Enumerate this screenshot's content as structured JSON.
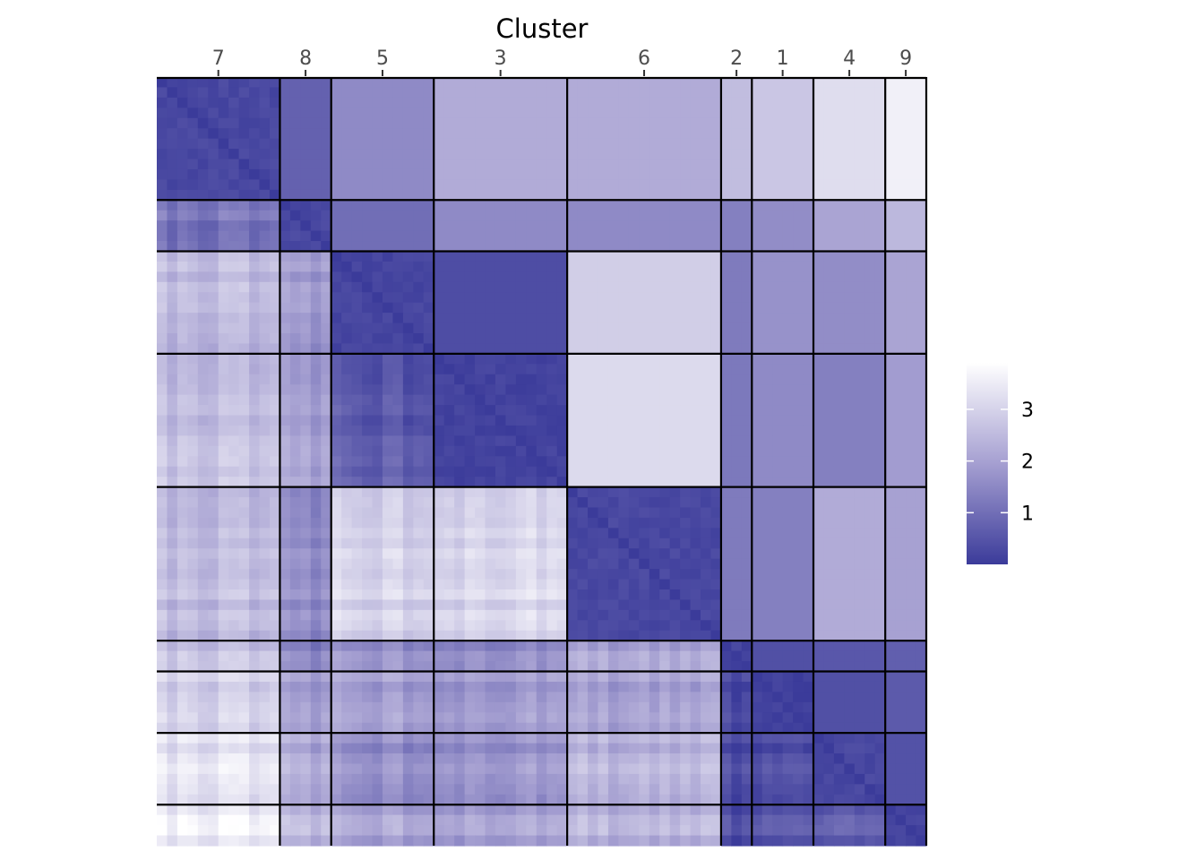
{
  "chart_data": {
    "type": "heatmap",
    "title": "",
    "xlabel": "Cluster",
    "ylabel": "",
    "clusters": [
      {
        "label": "7",
        "size": 12
      },
      {
        "label": "8",
        "size": 5
      },
      {
        "label": "5",
        "size": 10
      },
      {
        "label": "3",
        "size": 13
      },
      {
        "label": "6",
        "size": 15
      },
      {
        "label": "2",
        "size": 3
      },
      {
        "label": "1",
        "size": 6
      },
      {
        "label": "4",
        "size": 7
      },
      {
        "label": "9",
        "size": 4
      }
    ],
    "block_means": [
      [
        0.25,
        0.75,
        1.55,
        2.2,
        2.2,
        2.55,
        2.75,
        3.2,
        3.6
      ],
      [
        1.1,
        0.25,
        1.0,
        1.55,
        1.55,
        1.35,
        1.6,
        2.05,
        2.45
      ],
      [
        2.4,
        1.8,
        0.2,
        0.35,
        2.9,
        1.25,
        1.7,
        1.6,
        2.05
      ],
      [
        2.55,
        1.95,
        0.6,
        0.15,
        3.15,
        1.2,
        1.55,
        1.35,
        1.9
      ],
      [
        2.5,
        1.6,
        3.0,
        3.1,
        0.25,
        1.25,
        1.35,
        2.2,
        2.0
      ],
      [
        2.6,
        1.4,
        1.65,
        1.55,
        2.0,
        0.15,
        0.4,
        0.55,
        0.7
      ],
      [
        2.9,
        1.9,
        1.95,
        1.85,
        1.95,
        0.2,
        0.1,
        0.4,
        0.6
      ],
      [
        3.3,
        2.2,
        1.65,
        1.75,
        2.35,
        0.3,
        0.45,
        0.25,
        0.45
      ],
      [
        3.55,
        2.45,
        2.1,
        2.05,
        2.35,
        0.35,
        0.65,
        0.7,
        0.2
      ]
    ],
    "color_scale": {
      "low_color": "#3b3b9a",
      "high_color": "#ffffff",
      "limits": [
        0,
        3.9
      ],
      "breaks": [
        1,
        2,
        3
      ],
      "break_labels": [
        "1",
        "2",
        "3"
      ]
    },
    "legend_position": "right",
    "grid": false
  }
}
